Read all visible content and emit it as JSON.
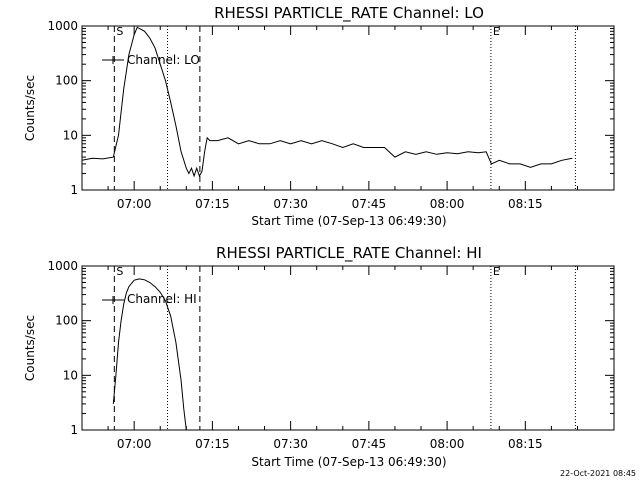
{
  "footer": {
    "date": "22-Oct-2021 08:45"
  },
  "chart_data": [
    {
      "type": "line",
      "title": "RHESSI PARTICLE_RATE Channel: LO",
      "xlabel": "Start Time (07-Sep-13 06:49:30)",
      "ylabel": "Counts/sec",
      "legend": "Channel: LO",
      "yscale": "log",
      "ylim": [
        1,
        1000
      ],
      "y_ticks": [
        1,
        10,
        100,
        1000
      ],
      "y_tick_labels": [
        "1",
        "10",
        "100",
        "1000"
      ],
      "xlim_minutes": [
        -10,
        92
      ],
      "x_tick_minutes": [
        0,
        15,
        30,
        45,
        60,
        75
      ],
      "x_tick_labels": [
        "07:00",
        "07:15",
        "07:30",
        "07:45",
        "08:00",
        "08:15"
      ],
      "markers": [
        {
          "label": "S",
          "minute": -3.8,
          "style": "dashed"
        },
        {
          "label": "",
          "minute": 6.4,
          "style": "dotted"
        },
        {
          "label": "",
          "minute": 12.6,
          "style": "dashed"
        },
        {
          "label": "E",
          "minute": 68.4,
          "style": "dotted"
        },
        {
          "label": "",
          "minute": 84.6,
          "style": "dotted"
        }
      ],
      "series": [
        {
          "name": "Channel: LO",
          "x": [
            -10,
            -8,
            -6,
            -4,
            -3,
            -2,
            -1,
            0,
            0.6,
            1,
            2,
            3,
            4,
            5,
            6,
            7,
            8,
            9,
            10,
            10.5,
            11,
            11.5,
            12,
            12.5,
            13,
            13.5,
            14,
            14.5,
            16,
            18,
            20,
            22,
            24,
            26,
            28,
            30,
            32,
            34,
            36,
            38,
            40,
            42,
            44,
            46,
            48,
            50,
            52,
            54,
            56,
            58,
            60,
            62,
            64,
            66,
            67.5,
            68.5,
            70,
            72,
            74,
            76,
            78,
            80,
            82,
            84
          ],
          "y": [
            3.5,
            3.8,
            3.7,
            4,
            10,
            70,
            300,
            700,
            950,
            900,
            800,
            600,
            400,
            200,
            100,
            40,
            15,
            5,
            2.5,
            2,
            2.5,
            1.8,
            2.5,
            1.8,
            2.2,
            5,
            9,
            8,
            8,
            9,
            7,
            8,
            7,
            7,
            8,
            7,
            8,
            7,
            8,
            7,
            6,
            7,
            6,
            6,
            6,
            4,
            5,
            4.5,
            5,
            4.5,
            4.8,
            4.6,
            5,
            4.8,
            5,
            3,
            3.5,
            3,
            3,
            2.6,
            3,
            3,
            3.5,
            3.8
          ]
        }
      ]
    },
    {
      "type": "line",
      "title": "RHESSI PARTICLE_RATE Channel: HI",
      "xlabel": "Start Time (07-Sep-13 06:49:30)",
      "ylabel": "Counts/sec",
      "legend": "Channel: HI",
      "yscale": "log",
      "ylim": [
        1,
        1000
      ],
      "y_ticks": [
        1,
        10,
        100,
        1000
      ],
      "y_tick_labels": [
        "1",
        "10",
        "100",
        "1000"
      ],
      "xlim_minutes": [
        -10,
        92
      ],
      "x_tick_minutes": [
        0,
        15,
        30,
        45,
        60,
        75
      ],
      "x_tick_labels": [
        "07:00",
        "07:15",
        "07:30",
        "07:45",
        "08:00",
        "08:15"
      ],
      "markers": [
        {
          "label": "S",
          "minute": -3.8,
          "style": "dashed"
        },
        {
          "label": "",
          "minute": 6.4,
          "style": "dotted"
        },
        {
          "label": "",
          "minute": 12.6,
          "style": "dashed"
        },
        {
          "label": "E",
          "minute": 68.4,
          "style": "dotted"
        },
        {
          "label": "",
          "minute": 84.6,
          "style": "dotted"
        }
      ],
      "series": [
        {
          "name": "Channel: HI",
          "x": [
            -4,
            -3.5,
            -3,
            -2.5,
            -2,
            -1.5,
            -1,
            0,
            1,
            2,
            3,
            4,
            5,
            6,
            7,
            8,
            9,
            9.5,
            10
          ],
          "y": [
            3,
            10,
            40,
            100,
            200,
            320,
            420,
            550,
            580,
            560,
            500,
            420,
            330,
            230,
            120,
            40,
            8,
            2.5,
            1
          ]
        }
      ]
    }
  ]
}
